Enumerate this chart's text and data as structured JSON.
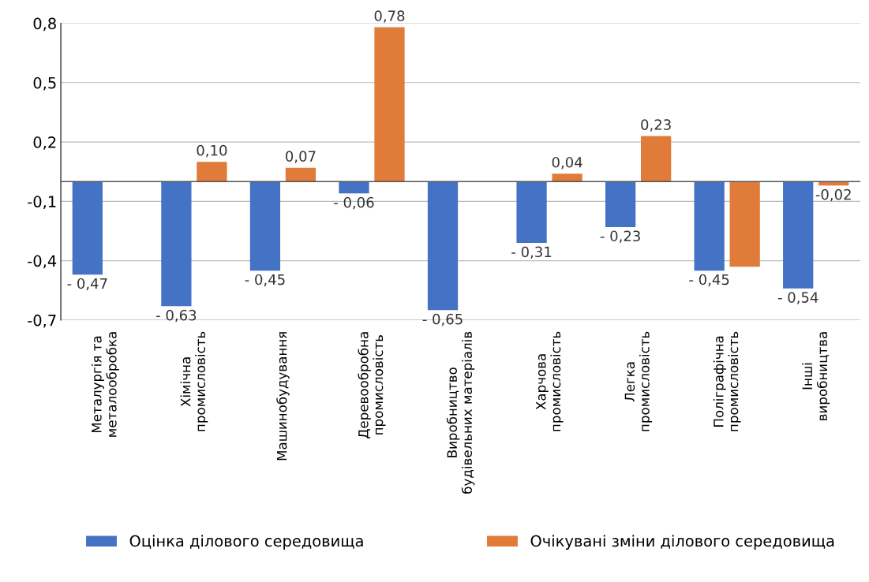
{
  "chart_data": {
    "type": "bar",
    "categories": [
      "Металургія та\nметалообробка",
      "Хімічна\nпромисловість",
      "Машинобудування",
      "Деревообробна\nпромисловість",
      "Виробництво\nбудівельних матеріалів",
      "Харчова\nпромисловість",
      "Легка\nпромисловість",
      "Поліграфічна\nпромисловість",
      "Інші\nвиробництва"
    ],
    "series": [
      {
        "name": "Оцінка ділового середовища",
        "color": "#4472c4",
        "values": [
          -0.47,
          -0.63,
          -0.45,
          -0.06,
          -0.65,
          -0.31,
          -0.23,
          -0.45,
          -0.54
        ],
        "value_labels": [
          "- 0,47",
          "- 0,63",
          "- 0,45",
          "- 0,06",
          "- 0,65",
          "- 0,31",
          "- 0,23",
          "- 0,45",
          "- 0,54"
        ]
      },
      {
        "name": "Очікувані зміни ділового середовища",
        "color": "#e07b39",
        "values": [
          null,
          0.1,
          0.07,
          0.78,
          null,
          0.04,
          0.23,
          -0.43,
          -0.02
        ],
        "value_labels": [
          null,
          "0,10",
          "0,07",
          "0,78",
          null,
          "0,04",
          "0,23",
          null,
          "-0,02"
        ]
      }
    ],
    "ylim": [
      -0.7,
      0.8
    ],
    "yticks": [
      {
        "value": -0.7,
        "label": "-0,7"
      },
      {
        "value": -0.4,
        "label": "-0,4"
      },
      {
        "value": -0.1,
        "label": "-0,1"
      },
      {
        "value": 0.2,
        "label": "0,2"
      },
      {
        "value": 0.5,
        "label": "0,5"
      },
      {
        "value": 0.8,
        "label": "0,8"
      }
    ],
    "grid": "y",
    "legend": "bottom"
  }
}
